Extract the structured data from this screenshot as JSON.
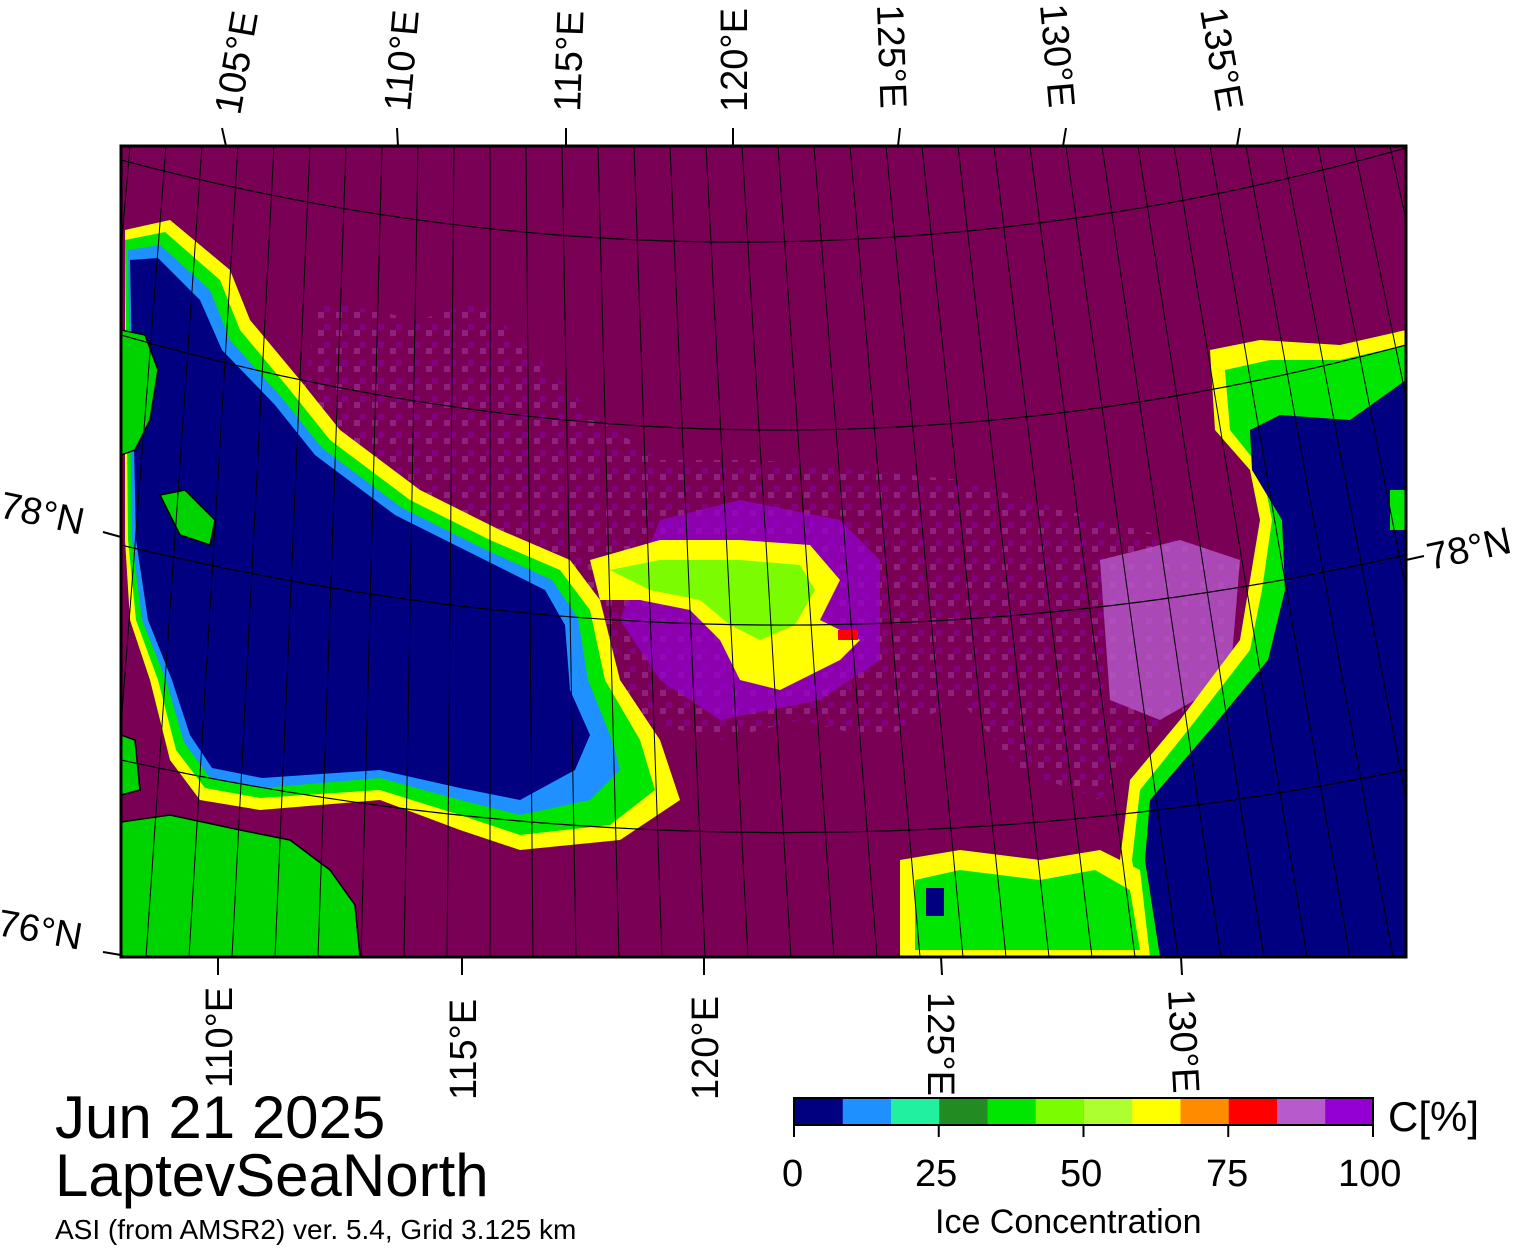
{
  "map": {
    "date": "Jun 21 2025",
    "region": "LaptevSeaNorth",
    "product": "ASI (from AMSR2) ver. 5.4,  Grid 3.125 km",
    "top_lon_labels": [
      "105°E",
      "110°E",
      "115°E",
      "120°E",
      "125°E",
      "130°E",
      "135°E"
    ],
    "bottom_lon_labels": [
      "110°E",
      "115°E",
      "120°E",
      "125°E",
      "130°E"
    ],
    "lat_labels": {
      "left_upper": "78°N",
      "left_lower": "76°N",
      "right": "78°N"
    },
    "colors": {
      "land": "#00d400",
      "open_water": "#000080",
      "full_ice": "#7a0055",
      "frame": "#000000"
    }
  },
  "colorbar": {
    "title": "Ice Concentration",
    "unit": "C[%]",
    "ticks": [
      "0",
      "25",
      "50",
      "75",
      "100"
    ],
    "range": [
      0,
      100
    ],
    "colors": [
      "#000080",
      "#1e90ff",
      "#20f0a0",
      "#228b22",
      "#00e600",
      "#7cfc00",
      "#adff2f",
      "#ffff00",
      "#ff8c00",
      "#ff0000",
      "#b65acc",
      "#9400d3"
    ]
  }
}
